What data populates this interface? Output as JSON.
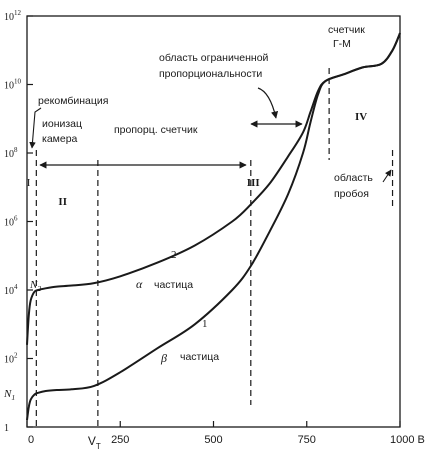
{
  "chart_data": {
    "type": "line",
    "title": "",
    "xlabel": "",
    "ylabel": "",
    "x_unit": "В",
    "xlim": [
      0,
      1000
    ],
    "ylim_log10": [
      0,
      12
    ],
    "y_log_scale": true,
    "x_ticks": [
      {
        "value": 0,
        "label": "0"
      },
      {
        "value": 250,
        "label": "250"
      },
      {
        "value": 500,
        "label": "500"
      },
      {
        "value": 750,
        "label": "750"
      },
      {
        "value": 1000,
        "label": "1000 В"
      }
    ],
    "y_ticks": [
      {
        "exp": 0,
        "label": "1"
      },
      {
        "exp": 2,
        "label": "10",
        "sup": "2"
      },
      {
        "exp": 4,
        "label": "10",
        "sup": "4"
      },
      {
        "exp": 6,
        "label": "10",
        "sup": "6"
      },
      {
        "exp": 8,
        "label": "10",
        "sup": "8"
      },
      {
        "exp": 10,
        "label": "10",
        "sup": "10"
      },
      {
        "exp": 12,
        "label": "10",
        "sup": "12"
      }
    ],
    "special_labels": {
      "vt": {
        "text": "V",
        "sub": "T",
        "x": 190
      },
      "n1": {
        "text": "N",
        "sub": "1",
        "exp": 1.0
      },
      "n2": {
        "text": "N",
        "sub": "2",
        "exp": 4.0
      }
    },
    "series": [
      {
        "name": "α частица",
        "number_label": "2",
        "x": [
          0,
          5,
          10,
          20,
          30,
          50,
          80,
          120,
          180,
          250,
          350,
          450,
          550,
          600,
          650,
          700,
          740,
          760,
          780,
          800,
          850,
          900,
          950,
          980,
          1000
        ],
        "log10_y": [
          2.4,
          3.3,
          3.7,
          3.95,
          4.0,
          4.05,
          4.1,
          4.13,
          4.2,
          4.4,
          4.8,
          5.3,
          6.0,
          6.5,
          7.1,
          7.9,
          8.6,
          9.2,
          9.8,
          10.1,
          10.3,
          10.5,
          10.6,
          11.0,
          11.5
        ]
      },
      {
        "name": "β частица",
        "number_label": "1",
        "x": [
          0,
          5,
          10,
          20,
          30,
          50,
          80,
          120,
          180,
          250,
          350,
          450,
          550,
          600,
          650,
          700,
          740,
          760,
          780,
          800,
          850,
          900,
          950,
          980,
          1000
        ],
        "log10_y": [
          0.2,
          0.6,
          0.8,
          0.95,
          1.0,
          1.05,
          1.08,
          1.1,
          1.2,
          1.6,
          2.3,
          3.0,
          4.0,
          4.7,
          5.7,
          6.8,
          8.0,
          8.9,
          9.7,
          10.1,
          10.3,
          10.5,
          10.6,
          11.0,
          11.5
        ]
      }
    ],
    "boundaries_x": [
      25,
      190,
      600,
      810,
      980
    ],
    "regions": [
      {
        "label": "I",
        "x": 10
      },
      {
        "label": "II",
        "x": 95
      },
      {
        "label": "III",
        "x": 600
      },
      {
        "label": "IV",
        "x": 890
      }
    ],
    "annotations": {
      "recombination": "рекомбинация",
      "ion_chamber_line1": "ионизац",
      "ion_chamber_line2": "камера",
      "proportional_counter": "пропорц. счетчик",
      "limited_prop_line1": "область ограниченной",
      "limited_prop_line2": "пропорциональности",
      "gm_line1": "счетчик",
      "gm_line2": "Г-М",
      "breakdown_line1": "область",
      "breakdown_line2": "пробоя",
      "alpha_label": "частица",
      "beta_label": "частица",
      "alpha_symbol": "α",
      "beta_symbol": "β"
    }
  }
}
